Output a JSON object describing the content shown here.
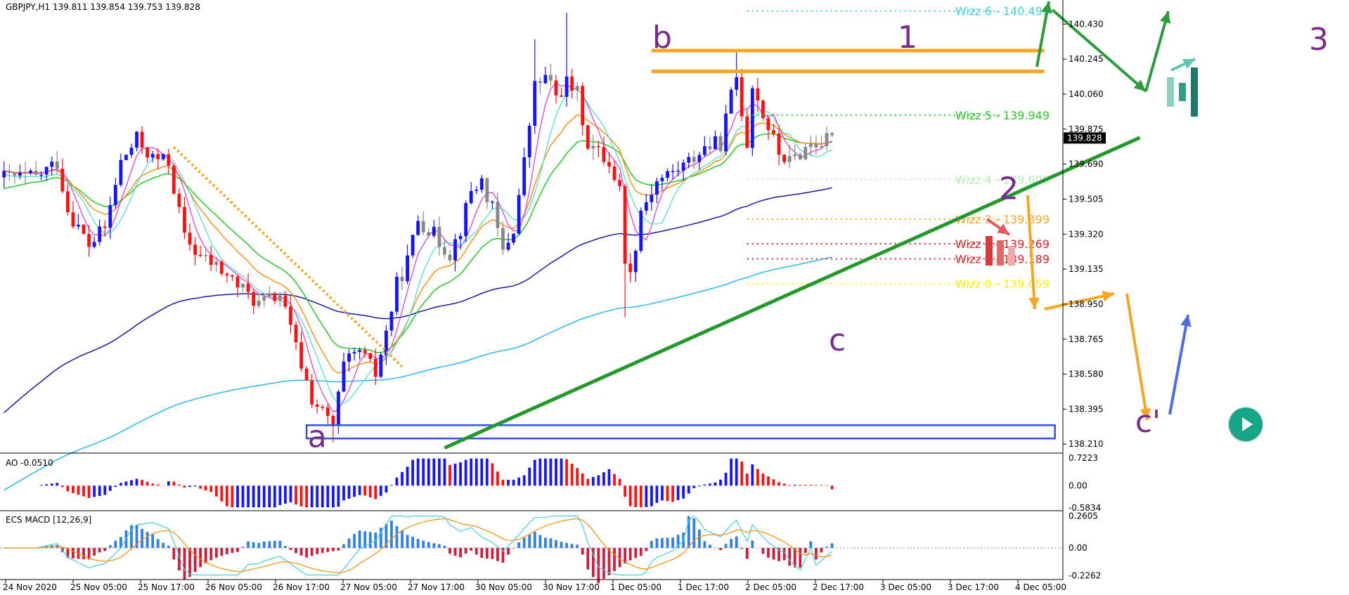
{
  "header": {
    "symbol_line": "GBPJPY,H1  139.811 139.854 139.753 139.828"
  },
  "chart_data": [
    {
      "type": "candlestick",
      "title": "GBPJPY,H1",
      "ohlc_header": {
        "open": 139.811,
        "high": 139.854,
        "low": 139.753,
        "close": 139.828
      },
      "current_price": "139.828",
      "y_ticks": [
        "140.430",
        "140.245",
        "140.060",
        "139.875",
        "139.690",
        "139.505",
        "139.320",
        "139.135",
        "138.950",
        "138.765",
        "138.580",
        "138.395",
        "138.210"
      ],
      "ylim": [
        138.17,
        140.55
      ],
      "x_ticks": [
        "24 Nov 2020",
        "25 Nov 05:00",
        "25 Nov 17:00",
        "26 Nov 05:00",
        "26 Nov 17:00",
        "27 Nov 05:00",
        "27 Nov 17:00",
        "30 Nov 05:00",
        "30 Nov 17:00",
        "1 Dec 05:00",
        "1 Dec 17:00",
        "2 Dec 05:00",
        "2 Dec 17:00",
        "3 Dec 05:00",
        "3 Dec 17:00",
        "4 Dec 05:00"
      ],
      "wizz_levels": [
        {
          "label": "Wizz 6 - 140.499",
          "value": 140.499,
          "color": "#40d0e0"
        },
        {
          "label": "Wizz 5 - 139.949",
          "value": 139.949,
          "color": "#22cc22"
        },
        {
          "label": "Wizz 4 - 139.609",
          "value": 139.609,
          "color": "#b8ecb8"
        },
        {
          "label": "Wizz 3 - 139.399",
          "value": 139.399,
          "color": "#f5a623"
        },
        {
          "label": "Wizz 2 - 139.269",
          "value": 139.269,
          "color": "#e02020"
        },
        {
          "label": "Wizz 1 - 139.189",
          "value": 139.189,
          "color": "#e02020"
        },
        {
          "label": "Wizz 0 - 139.059",
          "value": 139.059,
          "color": "#ffee00"
        }
      ],
      "wave_labels": [
        {
          "text": "a",
          "bar": 59,
          "price": 138.25
        },
        {
          "text": "b",
          "bar": 124,
          "price": 140.36
        },
        {
          "text": "c",
          "bar": 157,
          "price": 138.76
        },
        {
          "text": "1",
          "bar": 174,
          "price": 140.36
        },
        {
          "text": "2",
          "bar": 190,
          "price": 139.56
        },
        {
          "text": "3",
          "bar": 239,
          "price": 140.35
        },
        {
          "text": "c'",
          "bar": 212,
          "price": 138.33
        }
      ],
      "horizontal_lines": [
        {
          "name": "b-level",
          "value": 140.29,
          "color": "#f5a623"
        },
        {
          "name": "1-level",
          "value": 140.18,
          "color": "#f5a623"
        }
      ],
      "support_box": {
        "top": 138.31,
        "bottom": 138.24,
        "color": "#3355dd"
      },
      "trendline": {
        "from": [
          83,
          138.19
        ],
        "to": [
          214,
          139.83
        ],
        "color": "#22992b"
      },
      "series": [
        {
          "name": "candles",
          "count": 200
        },
        {
          "name": "magenta-ma",
          "color": "#e040e0"
        },
        {
          "name": "cyan-ma",
          "color": "#40e0d0"
        },
        {
          "name": "orange-ema",
          "color": "#ff8c00"
        },
        {
          "name": "green-ema",
          "color": "#22cc22"
        },
        {
          "name": "blue-ema",
          "color": "#1a1aa0"
        },
        {
          "name": "skyblue-ema",
          "color": "#29b6f6"
        }
      ]
    },
    {
      "type": "bar",
      "title": "AO -0.0510",
      "y_ticks": [
        "0.7223",
        "0.00",
        "-0.5834"
      ],
      "ylim": [
        -0.62,
        0.76
      ]
    },
    {
      "type": "bar",
      "title": "ECS MACD [12,26,9]",
      "y_ticks": [
        "0.2605",
        "0.00",
        "-0.2262"
      ],
      "ylim": [
        -0.24,
        0.28
      ]
    }
  ]
}
